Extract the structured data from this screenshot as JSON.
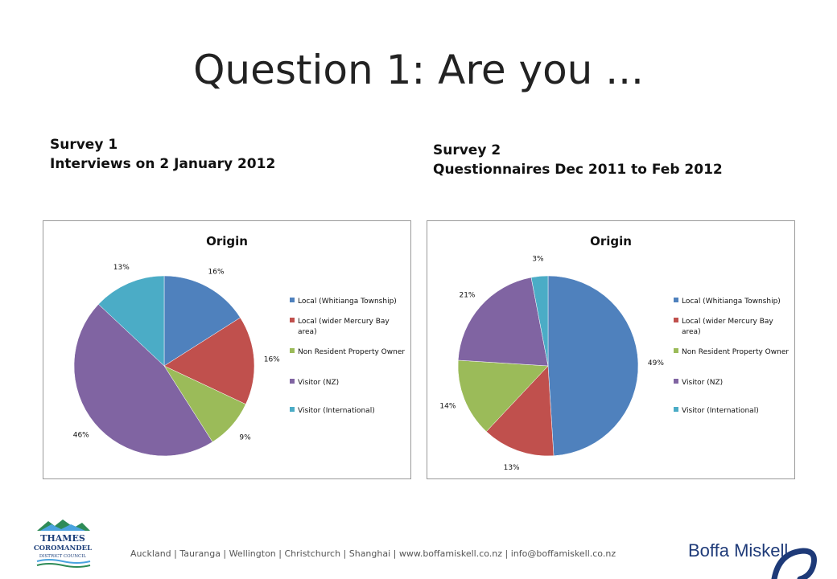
{
  "slide": {
    "title": "Question 1: Are you ...",
    "survey1": {
      "line1": "Survey 1",
      "line2": "Interviews on 2 January 2012"
    },
    "survey2": {
      "line1": "Survey 2",
      "line2": "Questionnaires Dec 2011 to Feb 2012"
    },
    "footer": "Auckland  |  Tauranga  |  Wellington  |  Christchurch  |  Shanghai   |  www.boffamiskell.co.nz   |  info@boffamiskell.co.nz",
    "logo_left_lines": [
      "THAMES",
      "COROMANDEL",
      "DISTRICT COUNCIL"
    ],
    "logo_right": "Boffa Miskell"
  },
  "chart_data": [
    {
      "type": "pie",
      "title": "Origin",
      "categories": [
        "Local (Whitianga Township)",
        "Local (wider Mercury Bay area)",
        "Non Resident Property Owner",
        "Visitor (NZ)",
        "Visitor (International)"
      ],
      "values": [
        16,
        16,
        9,
        46,
        13
      ],
      "labels": [
        "16%",
        "16%",
        "9%",
        "46%",
        "13%"
      ],
      "colors": [
        "#4f81bd",
        "#c0504d",
        "#9bbb59",
        "#8064a2",
        "#4bacc6"
      ],
      "legend": "right"
    },
    {
      "type": "pie",
      "title": "Origin",
      "categories": [
        "Local (Whitianga Township)",
        "Local (wider Mercury Bay area)",
        "Non Resident Property Owner",
        "Visitor (NZ)",
        "Visitor (International)"
      ],
      "values": [
        49,
        13,
        14,
        21,
        3
      ],
      "labels": [
        "49%",
        "13%",
        "14%",
        "21%",
        "3%"
      ],
      "colors": [
        "#4f81bd",
        "#c0504d",
        "#9bbb59",
        "#8064a2",
        "#4bacc6"
      ],
      "legend": "right"
    }
  ]
}
